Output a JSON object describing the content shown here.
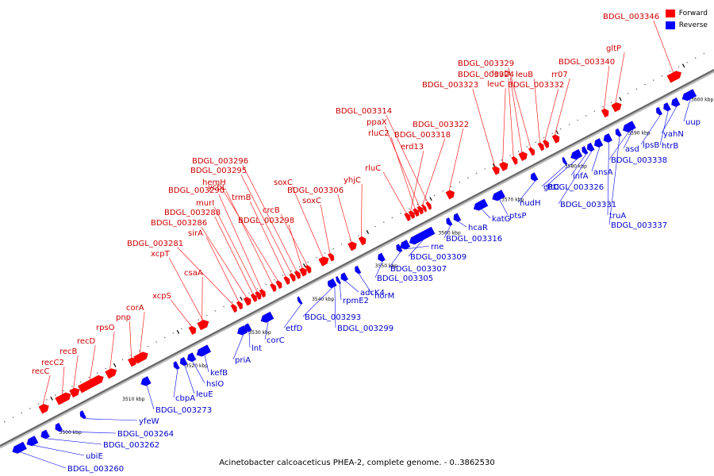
{
  "caption": "Acinetobacter calcoaceticus PHEA-2, complete genome. - 0..3862530",
  "legend": {
    "forward_label": "Forward",
    "reverse_label": "Reverse",
    "forward_color": "#ff0000",
    "reverse_color": "#0000ff"
  },
  "chart_data": {
    "type": "linear-genome-map",
    "ticks": [
      "3500 kbp",
      "3510 kbp",
      "3520 kbp",
      "3530 kbp",
      "3540 kbp",
      "3550 kbp",
      "3560 kbp",
      "3570 kbp",
      "3580 kbp",
      "3590 kbp",
      "3600 kbp"
    ],
    "forward_genes": [
      "recC",
      "recC2",
      "recB",
      "recD",
      "rpsO",
      "pnp",
      "corA",
      "xcpS",
      "csaA",
      "xcpT",
      "BDGL_003281",
      "sirA",
      "BDGL_003286",
      "BDGL_003288",
      "murI",
      "BDGL_003290",
      "ycbL",
      "hemH",
      "trmB",
      "BDGL_003295",
      "BDGL_003296",
      "BDGL_003298",
      "crcB",
      "soxC",
      "soxC",
      "BDGL_003306",
      "yhjC",
      "rluC",
      "erd13",
      "rluC2",
      "ppaX",
      "BDGL_003318",
      "BDGL_003314",
      "BDGL_003322",
      "BDGL_003323",
      "leuC",
      "BDGL_003324",
      "leuD",
      "BDGL_003329",
      "leuB",
      "BDGL_003332",
      "rr07",
      "BDGL_003340",
      "gltP",
      "BDGL_003346"
    ],
    "reverse_genes": [
      "BDGL_003260",
      "ubiE",
      "BDGL_003262",
      "BDGL_003264",
      "yfeW",
      "BDGL_003273",
      "cbpA",
      "leuE",
      "hslO",
      "kefB",
      "priA",
      "lnt",
      "corC",
      "etfD",
      "BDGL_003293",
      "BDGL_003299",
      "rpmE2",
      "adcK4",
      "norM",
      "BDGL_003305",
      "BDGL_003307",
      "BDGL_003309",
      "rne",
      "BDGL_003316",
      "hcaR",
      "katG",
      "ptsP",
      "nudH",
      "gltC",
      "BDGL_003326",
      "infA",
      "BDGL_003331",
      "ansA",
      "truA",
      "BDGL_003337",
      "BDGL_003338",
      "asd",
      "lpsB",
      "htrB",
      "yahN",
      "uup"
    ]
  }
}
